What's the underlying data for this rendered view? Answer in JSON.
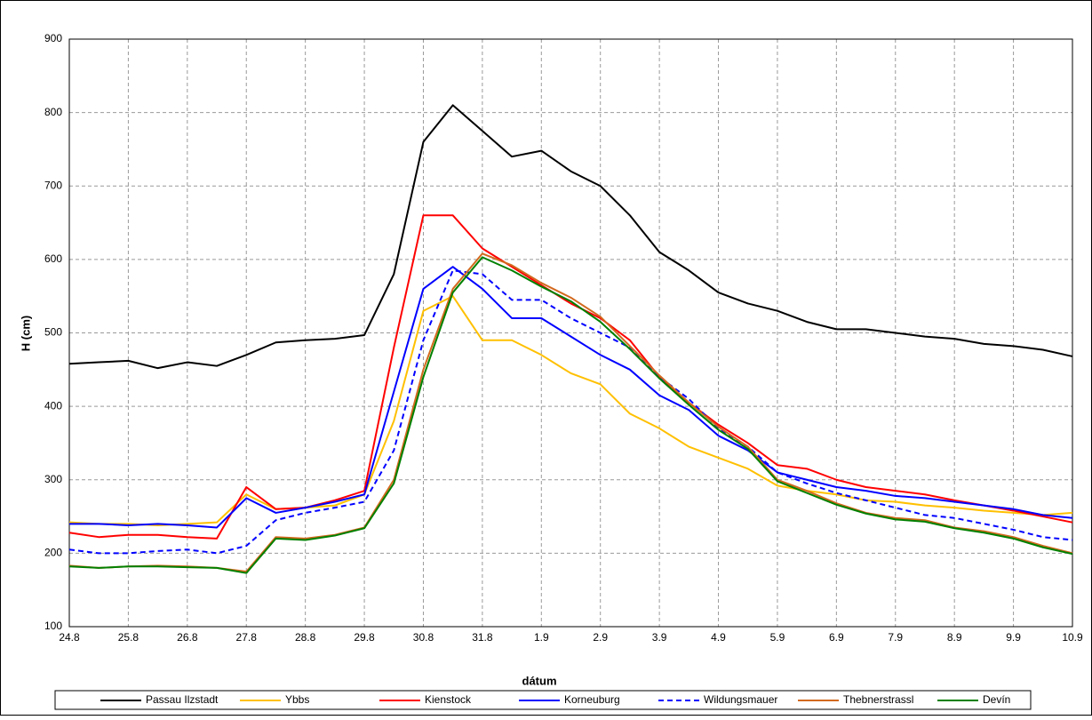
{
  "chart_data": {
    "type": "line",
    "x_label": "dátum",
    "y_label": "H (cm)",
    "categories": [
      "24.8",
      null,
      "25.8",
      null,
      "26.8",
      null,
      "27.8",
      null,
      "28.8",
      null,
      "29.8",
      null,
      "30.8",
      null,
      "31.8",
      null,
      "1.9",
      null,
      "2.9",
      null,
      "3.9",
      null,
      "4.9",
      null,
      "5.9",
      null,
      "6.9",
      null,
      "7.9",
      null,
      "8.9",
      null,
      "9.9",
      null,
      "10.9"
    ],
    "ylim": [
      100,
      900
    ],
    "yticks": [
      100,
      200,
      300,
      400,
      500,
      600,
      700,
      800,
      900
    ],
    "grid": true,
    "legend": "bottom",
    "series": [
      {
        "name": "Passau Ilzstadt",
        "color": "#000000",
        "values": [
          458,
          460,
          462,
          452,
          460,
          455,
          470,
          487,
          490,
          492,
          497,
          580,
          760,
          810,
          775,
          740,
          748,
          720,
          700,
          660,
          610,
          585,
          555,
          540,
          530,
          515,
          505,
          505,
          500,
          495,
          492,
          485,
          482,
          477,
          468
        ]
      },
      {
        "name": "Ybbs",
        "color": "#ffc000",
        "values": [
          242,
          240,
          240,
          238,
          240,
          242,
          280,
          260,
          262,
          265,
          280,
          380,
          530,
          550,
          490,
          490,
          470,
          445,
          430,
          390,
          370,
          345,
          330,
          315,
          292,
          285,
          280,
          272,
          270,
          265,
          262,
          258,
          255,
          252,
          255
        ]
      },
      {
        "name": "Kienstock",
        "color": "#ff0000",
        "values": [
          228,
          222,
          225,
          225,
          222,
          220,
          290,
          260,
          262,
          272,
          285,
          480,
          660,
          660,
          615,
          590,
          565,
          540,
          520,
          490,
          440,
          405,
          375,
          350,
          320,
          315,
          300,
          290,
          285,
          280,
          272,
          265,
          258,
          250,
          242
        ]
      },
      {
        "name": "Korneuburg",
        "color": "#0000ff",
        "values": [
          240,
          240,
          238,
          240,
          238,
          235,
          275,
          255,
          262,
          270,
          280,
          420,
          560,
          590,
          560,
          520,
          520,
          495,
          470,
          450,
          415,
          395,
          360,
          340,
          310,
          300,
          290,
          285,
          278,
          275,
          270,
          265,
          260,
          252,
          248
        ]
      },
      {
        "name": "Wildungsmauer",
        "color": "#0000ff",
        "dash": true,
        "values": [
          205,
          200,
          200,
          203,
          205,
          200,
          210,
          245,
          255,
          262,
          270,
          340,
          490,
          585,
          580,
          545,
          545,
          520,
          500,
          480,
          440,
          410,
          370,
          345,
          310,
          295,
          282,
          272,
          262,
          252,
          248,
          240,
          232,
          222,
          218
        ]
      },
      {
        "name": "Thebnerstrassl",
        "color": "#d2691e",
        "values": [
          183,
          180,
          182,
          183,
          182,
          180,
          175,
          222,
          220,
          225,
          235,
          300,
          450,
          560,
          608,
          592,
          568,
          548,
          522,
          482,
          442,
          405,
          372,
          345,
          300,
          285,
          268,
          255,
          248,
          245,
          235,
          230,
          222,
          210,
          200
        ]
      },
      {
        "name": "Devín",
        "color": "#008000",
        "values": [
          182,
          180,
          182,
          182,
          181,
          180,
          173,
          220,
          218,
          224,
          234,
          295,
          440,
          555,
          603,
          585,
          563,
          543,
          515,
          478,
          438,
          402,
          368,
          342,
          298,
          282,
          266,
          254,
          246,
          243,
          234,
          228,
          220,
          208,
          199
        ]
      }
    ]
  }
}
